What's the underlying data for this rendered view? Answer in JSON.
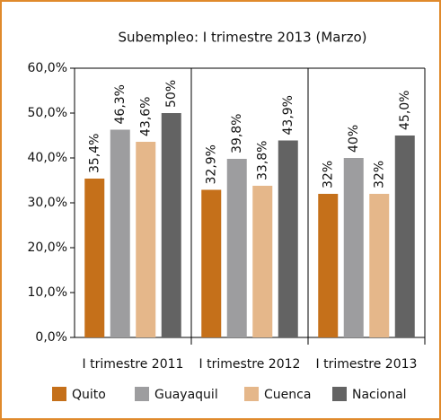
{
  "chart_data": {
    "type": "bar",
    "title": "Subempleo: I trimestre 2013 (Marzo)",
    "categories": [
      "I trimestre 2011",
      "I trimestre 2012",
      "I trimestre 2013"
    ],
    "series": [
      {
        "name": "Quito",
        "color": "#c5701a",
        "values": [
          35.4,
          32.9,
          32
        ],
        "value_labels": [
          "35,4%",
          "32,9%",
          "32%"
        ]
      },
      {
        "name": "Guayaquil",
        "color": "#9d9d9f",
        "values": [
          46.3,
          39.8,
          40
        ],
        "value_labels": [
          "46,3%",
          "39,8%",
          "40%"
        ]
      },
      {
        "name": "Cuenca",
        "color": "#e5b78a",
        "values": [
          43.6,
          33.8,
          32
        ],
        "value_labels": [
          "43,6%",
          "33,8%",
          "32%"
        ]
      },
      {
        "name": "Nacional",
        "color": "#636363",
        "values": [
          50,
          43.9,
          45.0
        ],
        "value_labels": [
          "50%",
          "43,9%",
          "45,0%"
        ]
      }
    ],
    "ylim": [
      0,
      60
    ],
    "yticks": [
      {
        "value": 0,
        "label": "0,0%"
      },
      {
        "value": 10,
        "label": "10,0%"
      },
      {
        "value": 20,
        "label": "20,0%"
      },
      {
        "value": 30,
        "label": "30,0%"
      },
      {
        "value": 40,
        "label": "40,0%"
      },
      {
        "value": 50,
        "label": "50,0%"
      },
      {
        "value": 60,
        "label": "60,0%"
      }
    ]
  }
}
